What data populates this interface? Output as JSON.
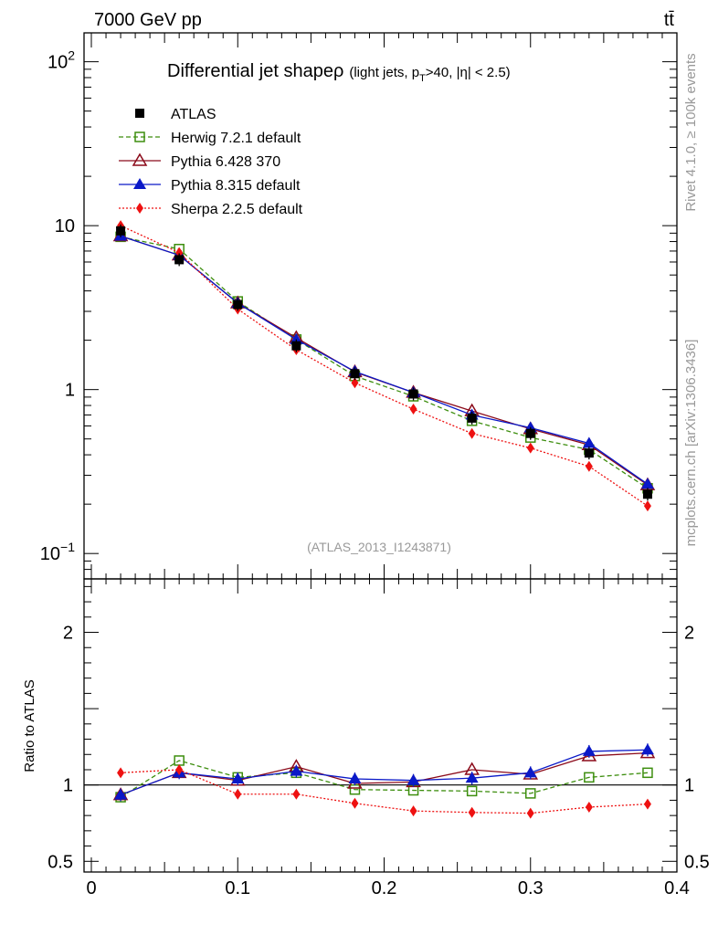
{
  "header": {
    "left": "7000 GeV pp",
    "right": "tt̄"
  },
  "side": {
    "rivet": "Rivet 4.1.0, ≥ 100k events",
    "mcplots": "mcplots.cern.ch [arXiv:1306.3436]"
  },
  "chart_data": [
    {
      "type": "line",
      "yscale": "log",
      "title_main": "Differential jet shape",
      "title_rho": "ρ",
      "title_cond_1": "(light jets, p",
      "title_cond_sub": "T",
      "title_cond_2": ">40, |η| < 2.5)",
      "analysis_label": "(ATLAS_2013_I1243871)",
      "xlim": [
        -0.005,
        0.4
      ],
      "ylim": [
        0.07,
        150
      ],
      "y_ticks": [
        {
          "value": 100,
          "base": "10",
          "exp": "2"
        },
        {
          "value": 10,
          "base": "10",
          "exp": ""
        },
        {
          "value": 1,
          "base": "1",
          "exp": ""
        },
        {
          "value": 0.1,
          "base": "10",
          "exp": "−1"
        }
      ],
      "x": [
        0.02,
        0.06,
        0.1,
        0.14,
        0.18,
        0.22,
        0.26,
        0.3,
        0.34,
        0.38
      ],
      "series": [
        {
          "name": "ATLAS",
          "color": "#000000",
          "marker": "filled-square",
          "line": "none",
          "values": [
            9.3,
            6.2,
            3.3,
            1.85,
            1.25,
            0.94,
            0.67,
            0.54,
            0.41,
            0.23
          ]
        },
        {
          "name": "Herwig 7.2.1 default",
          "color": "#3d8e0e",
          "marker": "open-square",
          "line": "dashed",
          "values": [
            8.55,
            7.2,
            3.45,
            2.02,
            1.21,
            0.91,
            0.645,
            0.51,
            0.43,
            0.25
          ]
        },
        {
          "name": "Pythia 6.428 370",
          "color": "#8b0a1a",
          "marker": "open-triangle",
          "line": "solid",
          "values": [
            8.65,
            6.6,
            3.37,
            2.07,
            1.28,
            0.96,
            0.74,
            0.575,
            0.46,
            0.262
          ]
        },
        {
          "name": "Pythia 8.315 default",
          "color": "#0a19c8",
          "marker": "filled-triangle",
          "line": "solid",
          "values": [
            8.65,
            6.6,
            3.37,
            2.02,
            1.29,
            0.96,
            0.7,
            0.585,
            0.47,
            0.265
          ]
        },
        {
          "name": "Sherpa 2.2.5 default",
          "color": "#ee1111",
          "marker": "filled-diamond",
          "line": "dotted",
          "values": [
            10.0,
            6.85,
            3.1,
            1.75,
            1.1,
            0.76,
            0.54,
            0.44,
            0.34,
            0.195
          ]
        }
      ]
    },
    {
      "type": "line",
      "ylabel": "Ratio to ATLAS",
      "ylim": [
        0.43,
        2.35
      ],
      "xlim": [
        -0.005,
        0.4
      ],
      "y_ticks": [
        {
          "value": 2,
          "label": "2"
        },
        {
          "value": 1,
          "label": "1"
        },
        {
          "value": 0.5,
          "label": "0.5"
        }
      ],
      "x_ticks": [
        {
          "value": 0,
          "label": "0"
        },
        {
          "value": 0.1,
          "label": "0.1"
        },
        {
          "value": 0.2,
          "label": "0.2"
        },
        {
          "value": 0.3,
          "label": "0.3"
        },
        {
          "value": 0.4,
          "label": "0.4"
        }
      ],
      "x": [
        0.02,
        0.06,
        0.1,
        0.14,
        0.18,
        0.22,
        0.26,
        0.3,
        0.34,
        0.38
      ],
      "series": [
        {
          "name": "Herwig 7.2.1 default",
          "color": "#3d8e0e",
          "marker": "open-square",
          "line": "dashed",
          "values": [
            0.92,
            1.16,
            1.05,
            1.08,
            0.97,
            0.965,
            0.96,
            0.945,
            1.05,
            1.08
          ]
        },
        {
          "name": "Pythia 6.428 370",
          "color": "#8b0a1a",
          "marker": "open-triangle",
          "line": "solid",
          "values": [
            0.935,
            1.08,
            1.03,
            1.12,
            1.01,
            1.02,
            1.1,
            1.07,
            1.19,
            1.21
          ]
        },
        {
          "name": "Pythia 8.315 default",
          "color": "#0a19c8",
          "marker": "filled-triangle",
          "line": "solid",
          "values": [
            0.935,
            1.08,
            1.04,
            1.09,
            1.04,
            1.03,
            1.045,
            1.08,
            1.22,
            1.23
          ]
        },
        {
          "name": "Sherpa 2.2.5 default",
          "color": "#ee1111",
          "marker": "filled-diamond",
          "line": "dotted",
          "values": [
            1.08,
            1.1,
            0.94,
            0.94,
            0.88,
            0.83,
            0.82,
            0.815,
            0.855,
            0.875
          ]
        }
      ]
    }
  ]
}
